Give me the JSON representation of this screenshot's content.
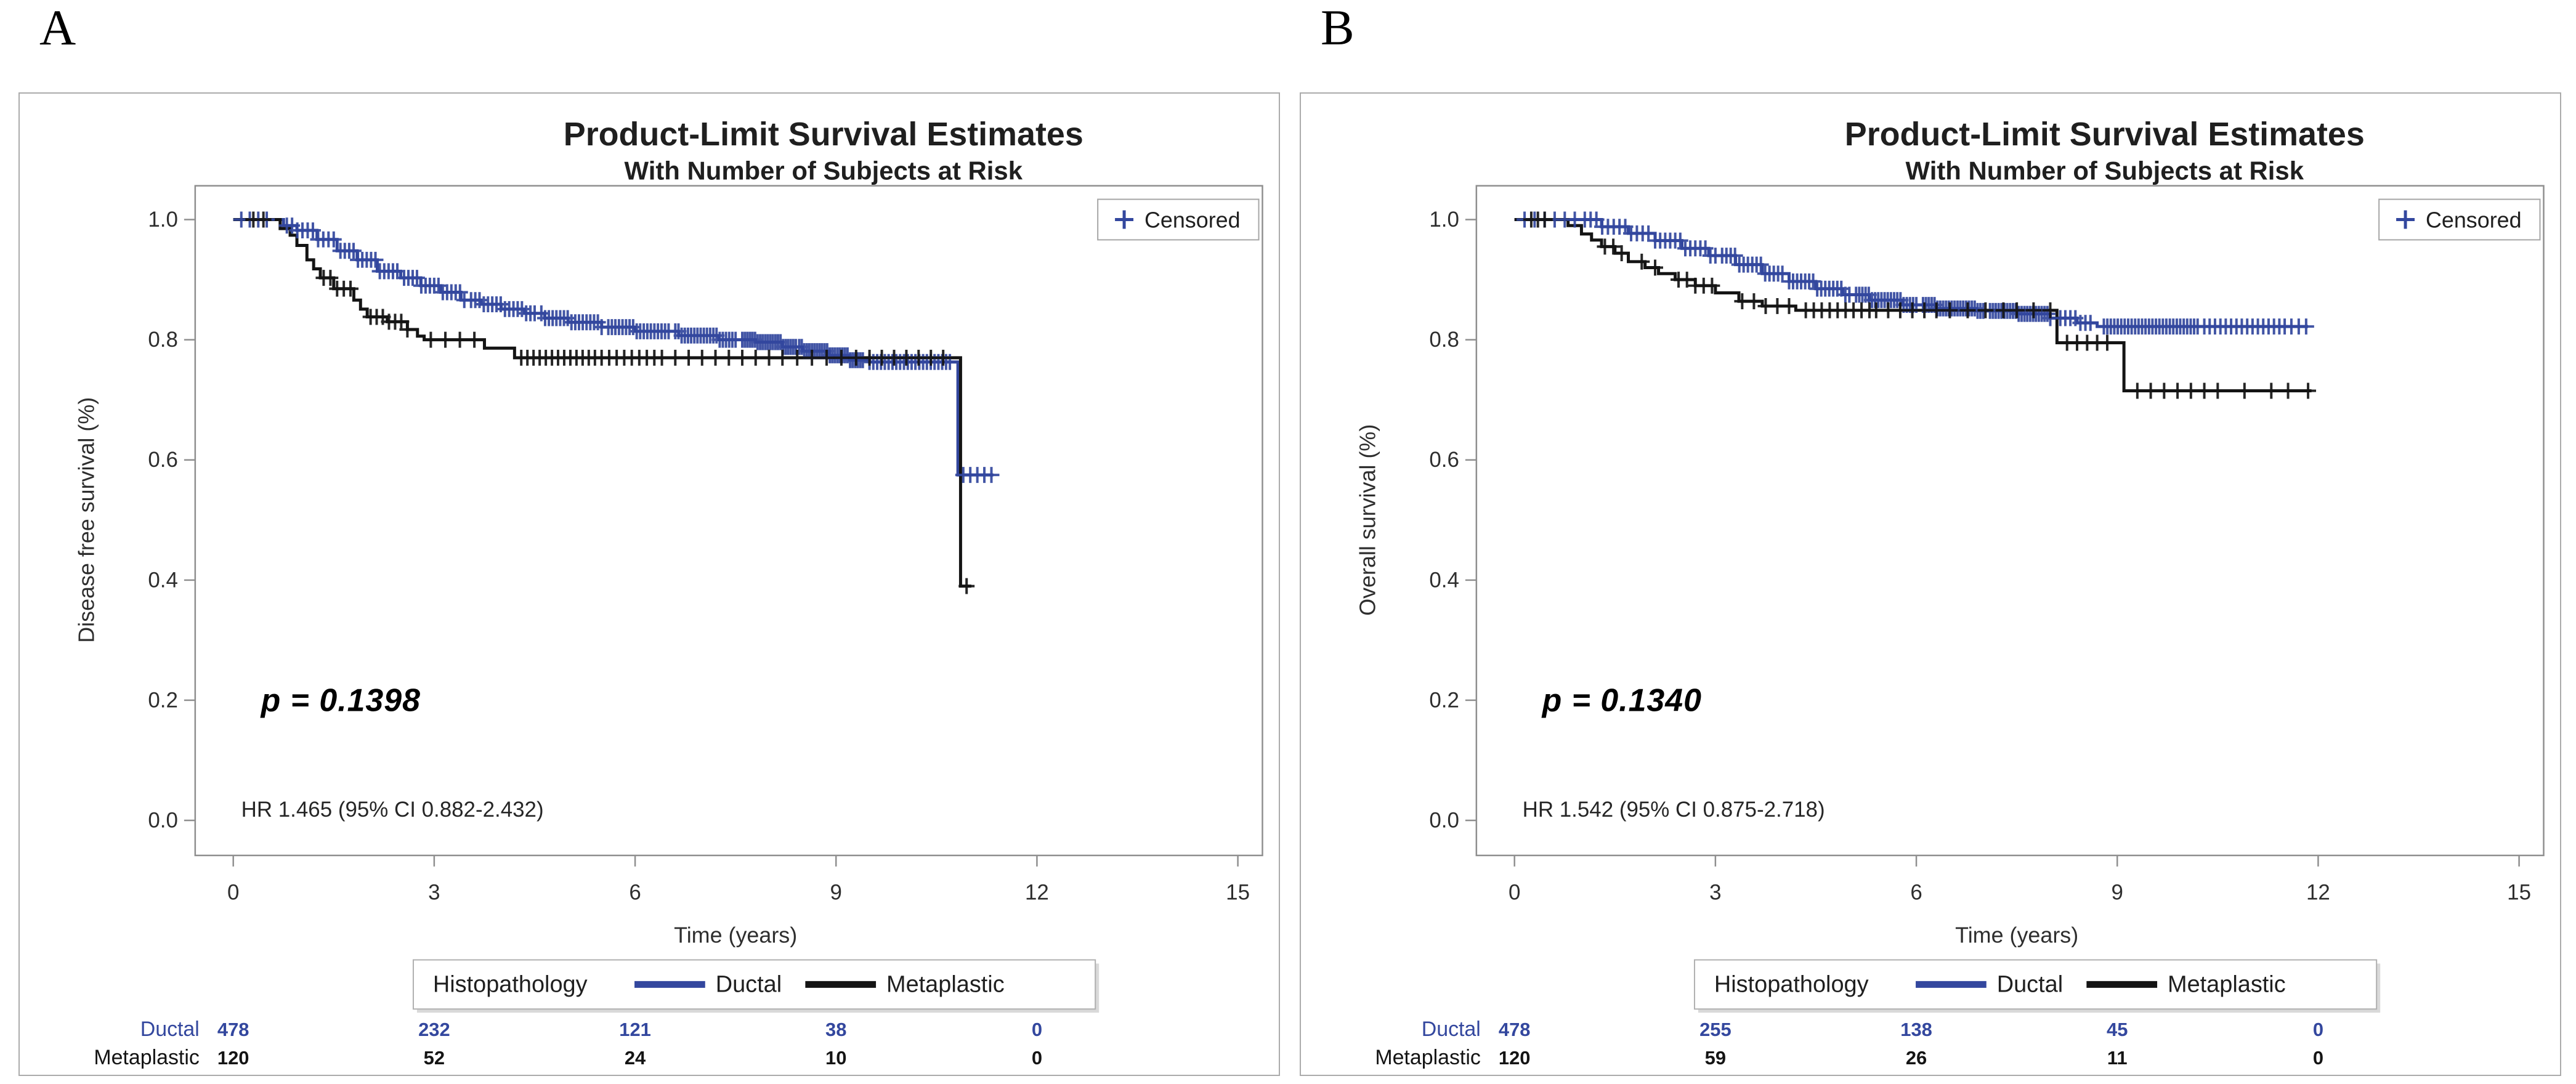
{
  "figure_letters": {
    "a": "A",
    "b": "B"
  },
  "chart_data": [
    {
      "type": "line",
      "subtype": "kaplan-meier-step",
      "panel_label": "A",
      "title": "Product-Limit Survival Estimates",
      "subtitle": "With Number of Subjects at Risk",
      "xlabel": "Time (years)",
      "ylabel": "Disease free survival (%)",
      "xlim": [
        0,
        15
      ],
      "ylim": [
        0.0,
        1.0
      ],
      "x_ticks": [
        0,
        3,
        6,
        9,
        12,
        15
      ],
      "y_ticks": [
        1.0,
        0.8,
        0.6,
        0.4,
        0.2,
        0.0
      ],
      "grid": false,
      "marker_legend_label": "Censored",
      "marker_legend_symbol": "plus",
      "annotations": {
        "p_value": "p = 0.1398",
        "hazard_ratio": "HR 1.465 (95% CI 0.882-2.432)"
      },
      "legend": {
        "title": "Histopathology",
        "position": "bottom-center",
        "entries": [
          {
            "label": "Ductal",
            "color": "#33479e"
          },
          {
            "label": "Metaplastic",
            "color": "#141414"
          }
        ]
      },
      "series": [
        {
          "name": "Ductal",
          "color": "#33479e",
          "steps": [
            [
              0,
              1.0
            ],
            [
              0.55,
              1.0
            ],
            [
              0.75,
              0.99
            ],
            [
              0.95,
              0.982
            ],
            [
              1.25,
              0.967
            ],
            [
              1.55,
              0.948
            ],
            [
              1.85,
              0.933
            ],
            [
              2.15,
              0.914
            ],
            [
              2.5,
              0.903
            ],
            [
              2.8,
              0.89
            ],
            [
              3.1,
              0.879
            ],
            [
              3.4,
              0.866
            ],
            [
              3.7,
              0.859
            ],
            [
              4.0,
              0.851
            ],
            [
              4.35,
              0.844
            ],
            [
              4.65,
              0.836
            ],
            [
              5.0,
              0.829
            ],
            [
              5.5,
              0.821
            ],
            [
              6.0,
              0.814
            ],
            [
              6.65,
              0.807
            ],
            [
              7.25,
              0.8
            ],
            [
              7.8,
              0.796
            ],
            [
              8.2,
              0.788
            ],
            [
              8.5,
              0.781
            ],
            [
              8.9,
              0.774
            ],
            [
              9.2,
              0.766
            ],
            [
              9.5,
              0.763
            ],
            [
              10.82,
              0.575
            ],
            [
              11.35,
              0.575
            ]
          ],
          "censor_segments": [
            [
              0.12,
              0.5,
              4
            ],
            [
              0.8,
              1.5,
              10
            ],
            [
              1.6,
              2.45,
              14
            ],
            [
              2.55,
              3.45,
              15
            ],
            [
              3.55,
              4.5,
              16
            ],
            [
              4.6,
              5.5,
              17
            ],
            [
              5.6,
              6.5,
              18
            ],
            [
              6.6,
              7.5,
              20
            ],
            [
              7.6,
              8.4,
              22
            ],
            [
              8.45,
              9.4,
              26
            ],
            [
              9.5,
              10.7,
              22
            ],
            [
              10.9,
              11.32,
              5
            ]
          ]
        },
        {
          "name": "Metaplastic",
          "color": "#141414",
          "steps": [
            [
              0,
              1.0
            ],
            [
              0.5,
              1.0
            ],
            [
              0.7,
              0.985
            ],
            [
              0.85,
              0.974
            ],
            [
              0.95,
              0.957
            ],
            [
              1.1,
              0.933
            ],
            [
              1.2,
              0.918
            ],
            [
              1.3,
              0.903
            ],
            [
              1.5,
              0.885
            ],
            [
              1.8,
              0.866
            ],
            [
              1.9,
              0.851
            ],
            [
              2.0,
              0.838
            ],
            [
              2.3,
              0.83
            ],
            [
              2.6,
              0.817
            ],
            [
              2.75,
              0.806
            ],
            [
              2.85,
              0.8
            ],
            [
              3.75,
              0.786
            ],
            [
              4.2,
              0.77
            ],
            [
              10.86,
              0.39
            ],
            [
              11.02,
              0.39
            ]
          ],
          "censor_segments": [
            [
              0.3,
              0.45,
              2
            ],
            [
              1.35,
              1.75,
              5
            ],
            [
              2.05,
              2.6,
              7
            ],
            [
              2.95,
              3.6,
              4
            ],
            [
              4.3,
              5.4,
              13
            ],
            [
              5.5,
              6.4,
              9
            ],
            [
              6.6,
              8.0,
              8
            ],
            [
              8.2,
              9.3,
              6
            ],
            [
              9.5,
              10.6,
              7
            ],
            [
              10.95,
              11.0,
              1
            ]
          ]
        }
      ],
      "at_risk_table": {
        "rows": [
          {
            "label": "Ductal",
            "color": "#33479e",
            "counts": [
              "478",
              "232",
              "121",
              "38",
              "0"
            ],
            "times": [
              0,
              3,
              6,
              9,
              12
            ]
          },
          {
            "label": "Metaplastic",
            "color": "#141414",
            "counts": [
              "120",
              "52",
              "24",
              "10",
              "0"
            ],
            "times": [
              0,
              3,
              6,
              9,
              12
            ]
          }
        ]
      }
    },
    {
      "type": "line",
      "subtype": "kaplan-meier-step",
      "panel_label": "B",
      "title": "Product-Limit Survival Estimates",
      "subtitle": "With Number of Subjects at Risk",
      "xlabel": "Time (years)",
      "ylabel": "Overall survival (%)",
      "xlim": [
        0,
        15
      ],
      "ylim": [
        0.0,
        1.0
      ],
      "x_ticks": [
        0,
        3,
        6,
        9,
        12,
        15
      ],
      "y_ticks": [
        1.0,
        0.8,
        0.6,
        0.4,
        0.2,
        0.0
      ],
      "grid": false,
      "marker_legend_label": "Censored",
      "marker_legend_symbol": "plus",
      "annotations": {
        "p_value": "p = 0.1340",
        "hazard_ratio": "HR 1.542 (95% CI 0.875-2.718)"
      },
      "legend": {
        "title": "Histopathology",
        "position": "bottom-center",
        "entries": [
          {
            "label": "Ductal",
            "color": "#33479e"
          },
          {
            "label": "Metaplastic",
            "color": "#141414"
          }
        ]
      },
      "series": [
        {
          "name": "Ductal",
          "color": "#33479e",
          "steps": [
            [
              0,
              1.0
            ],
            [
              1.0,
              1.0
            ],
            [
              1.3,
              0.988
            ],
            [
              1.7,
              0.977
            ],
            [
              2.1,
              0.965
            ],
            [
              2.5,
              0.952
            ],
            [
              2.9,
              0.94
            ],
            [
              3.3,
              0.925
            ],
            [
              3.7,
              0.91
            ],
            [
              4.1,
              0.897
            ],
            [
              4.5,
              0.885
            ],
            [
              4.9,
              0.875
            ],
            [
              5.3,
              0.866
            ],
            [
              5.8,
              0.858
            ],
            [
              6.3,
              0.852
            ],
            [
              6.9,
              0.848
            ],
            [
              7.5,
              0.843
            ],
            [
              8.0,
              0.836
            ],
            [
              8.4,
              0.828
            ],
            [
              8.7,
              0.822
            ],
            [
              11.85,
              0.822
            ]
          ],
          "censor_segments": [
            [
              0.15,
              0.9,
              6
            ],
            [
              1.05,
              2.0,
              12
            ],
            [
              2.1,
              3.0,
              13
            ],
            [
              3.1,
              4.0,
              15
            ],
            [
              4.1,
              5.0,
              16
            ],
            [
              5.1,
              6.0,
              20
            ],
            [
              6.1,
              7.0,
              22
            ],
            [
              7.1,
              8.0,
              22
            ],
            [
              8.15,
              8.6,
              7
            ],
            [
              8.8,
              10.2,
              28
            ],
            [
              10.3,
              11.5,
              16
            ],
            [
              11.6,
              11.82,
              3
            ]
          ]
        },
        {
          "name": "Metaplastic",
          "color": "#141414",
          "steps": [
            [
              0,
              1.0
            ],
            [
              0.55,
              1.0
            ],
            [
              0.8,
              0.99
            ],
            [
              1.0,
              0.976
            ],
            [
              1.15,
              0.966
            ],
            [
              1.3,
              0.955
            ],
            [
              1.5,
              0.944
            ],
            [
              1.7,
              0.93
            ],
            [
              1.95,
              0.92
            ],
            [
              2.15,
              0.91
            ],
            [
              2.4,
              0.9
            ],
            [
              2.7,
              0.89
            ],
            [
              3.0,
              0.878
            ],
            [
              3.35,
              0.864
            ],
            [
              3.7,
              0.856
            ],
            [
              4.2,
              0.849
            ],
            [
              8.1,
              0.795
            ],
            [
              9.1,
              0.715
            ],
            [
              11.9,
              0.715
            ]
          ],
          "censor_segments": [
            [
              0.25,
              0.45,
              3
            ],
            [
              1.35,
              1.6,
              3
            ],
            [
              1.9,
              2.1,
              2
            ],
            [
              2.45,
              2.95,
              5
            ],
            [
              3.4,
              4.1,
              5
            ],
            [
              4.35,
              5.3,
              9
            ],
            [
              5.4,
              6.3,
              6
            ],
            [
              6.5,
              7.3,
              4
            ],
            [
              7.5,
              8.0,
              3
            ],
            [
              8.25,
              8.85,
              5
            ],
            [
              9.3,
              10.3,
              6
            ],
            [
              10.5,
              11.3,
              3
            ],
            [
              11.55,
              11.85,
              2
            ]
          ]
        }
      ],
      "at_risk_table": {
        "rows": [
          {
            "label": "Ductal",
            "color": "#33479e",
            "counts": [
              "478",
              "255",
              "138",
              "45",
              "0"
            ],
            "times": [
              0,
              3,
              6,
              9,
              12
            ]
          },
          {
            "label": "Metaplastic",
            "color": "#141414",
            "counts": [
              "120",
              "59",
              "26",
              "11",
              "0"
            ],
            "times": [
              0,
              3,
              6,
              9,
              12
            ]
          }
        ]
      }
    }
  ],
  "style_colors": {
    "accent_blue": "#33479e",
    "series_black": "#141414",
    "axis_gray": "#8f8f8f",
    "text_dark": "#262626",
    "panel_border": "#ababab",
    "legend_border": "#b0b0b0",
    "legend_shadow": "#d9d9d9"
  }
}
